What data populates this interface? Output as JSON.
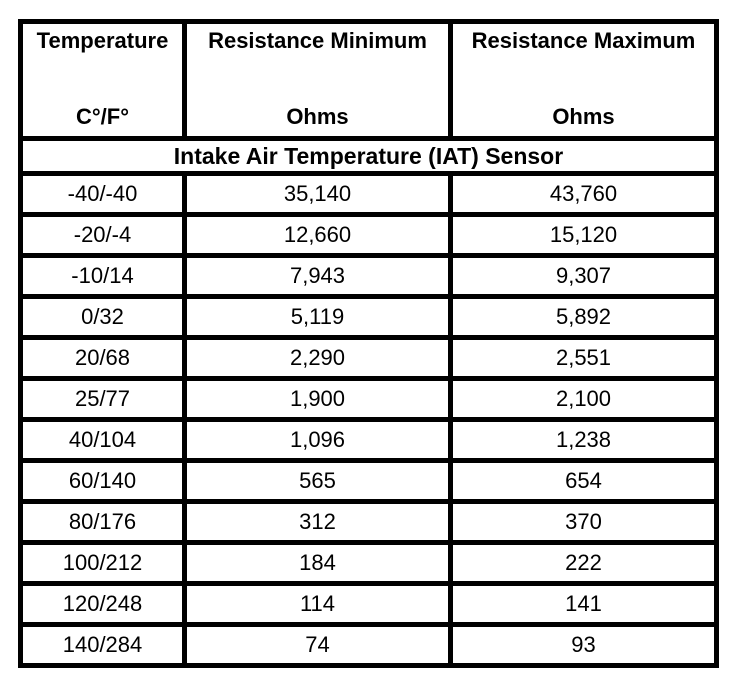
{
  "table": {
    "columns": [
      {
        "label": "Temperature",
        "unit": "C°/F°"
      },
      {
        "label": "Resistance Minimum",
        "unit": "Ohms"
      },
      {
        "label": "Resistance Maximum",
        "unit": "Ohms"
      }
    ],
    "section_title": "Intake Air Temperature (IAT) Sensor",
    "rows": [
      {
        "temp": "-40/-40",
        "min": "35,140",
        "max": "43,760"
      },
      {
        "temp": "-20/-4",
        "min": "12,660",
        "max": "15,120"
      },
      {
        "temp": "-10/14",
        "min": "7,943",
        "max": "9,307"
      },
      {
        "temp": "0/32",
        "min": "5,119",
        "max": "5,892"
      },
      {
        "temp": "20/68",
        "min": "2,290",
        "max": "2,551"
      },
      {
        "temp": "25/77",
        "min": "1,900",
        "max": "2,100"
      },
      {
        "temp": "40/104",
        "min": "1,096",
        "max": "1,238"
      },
      {
        "temp": "60/140",
        "min": "565",
        "max": "654"
      },
      {
        "temp": "80/176",
        "min": "312",
        "max": "370"
      },
      {
        "temp": "100/212",
        "min": "184",
        "max": "222"
      },
      {
        "temp": "120/248",
        "min": "114",
        "max": "141"
      },
      {
        "temp": "140/284",
        "min": "74",
        "max": "93"
      }
    ],
    "colors": {
      "border": "#000000",
      "background": "#ffffff",
      "text": "#000000"
    }
  }
}
